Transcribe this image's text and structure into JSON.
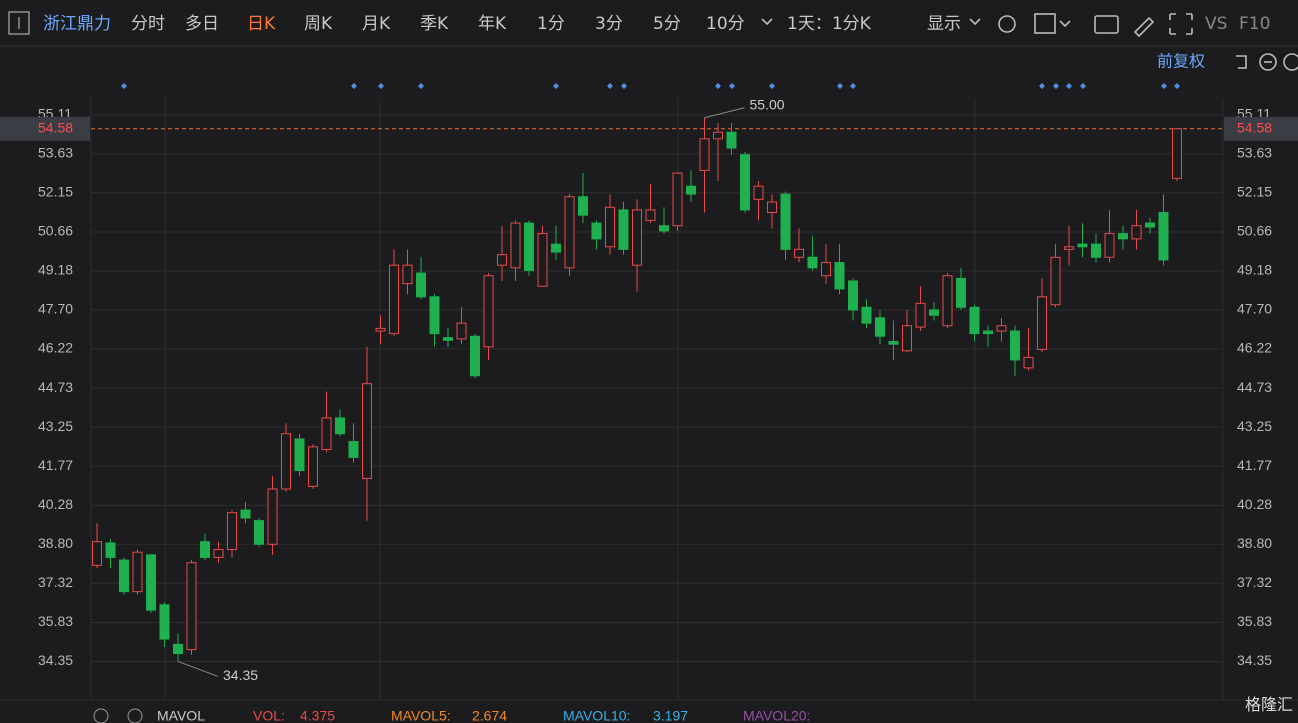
{
  "toolbar": {
    "stock": "浙江鼎力",
    "tabs": [
      "分时",
      "多日",
      "日K",
      "周K",
      "月K",
      "季K",
      "年K",
      "1分",
      "3分",
      "5分",
      "10分"
    ],
    "active_tab": 2,
    "period": "1天：1分K",
    "display": "显示",
    "vs": "VS",
    "f10": "F10"
  },
  "adjust": "前复权",
  "chart_data": {
    "type": "candlestick",
    "open": [
      38.0,
      38.85,
      38.2,
      37.0,
      38.4,
      36.5,
      35.0,
      34.8,
      38.9,
      38.3,
      38.6,
      40.1,
      39.7,
      38.8,
      40.9,
      42.8,
      41.0,
      42.4,
      43.6,
      42.7,
      41.3,
      46.9,
      46.8,
      48.7,
      49.1,
      48.2,
      46.65,
      46.6,
      46.7,
      46.3,
      49.4,
      49.3,
      51.0,
      48.6,
      50.2,
      49.3,
      52.0,
      51.0,
      50.1,
      51.5,
      49.4,
      51.1,
      50.9,
      50.9,
      52.4,
      53.0,
      54.2,
      54.45,
      53.6,
      51.9,
      51.4,
      52.1,
      49.7,
      49.7,
      49.0,
      49.5,
      48.8,
      47.8,
      47.4,
      46.5,
      46.15,
      47.05,
      47.7,
      47.1,
      48.9,
      47.8,
      46.9,
      46.9,
      46.9,
      45.5,
      46.2,
      47.9,
      50.0,
      50.2,
      50.2,
      49.7,
      50.6,
      50.4,
      51.0,
      51.4,
      52.7
    ],
    "high": [
      39.6,
      39.0,
      38.3,
      38.6,
      38.4,
      36.6,
      35.4,
      38.2,
      39.2,
      38.9,
      40.1,
      40.4,
      39.8,
      41.4,
      43.4,
      43.0,
      42.6,
      44.6,
      43.9,
      43.4,
      46.3,
      47.5,
      50.0,
      50.0,
      49.7,
      48.3,
      47.0,
      47.8,
      46.8,
      49.1,
      50.9,
      51.1,
      51.1,
      50.9,
      50.9,
      52.1,
      52.9,
      51.1,
      52.1,
      51.8,
      51.9,
      52.5,
      51.6,
      52.9,
      53.0,
      55.0,
      54.8,
      54.8,
      53.7,
      52.6,
      52.1,
      52.2,
      50.8,
      50.5,
      50.2,
      50.2,
      48.9,
      48.1,
      47.7,
      47.3,
      47.7,
      48.6,
      48.0,
      49.1,
      49.3,
      47.9,
      47.1,
      47.4,
      47.1,
      47.0,
      48.9,
      50.2,
      50.9,
      51.0,
      50.6,
      51.5,
      50.9,
      51.5,
      51.2,
      52.1,
      54.58
    ],
    "low": [
      37.9,
      37.9,
      36.9,
      36.9,
      36.2,
      34.9,
      34.35,
      34.6,
      38.2,
      38.1,
      38.3,
      39.6,
      38.7,
      38.4,
      40.8,
      41.4,
      40.9,
      42.3,
      42.9,
      41.9,
      39.7,
      46.4,
      46.7,
      48.3,
      48.1,
      46.3,
      46.3,
      46.4,
      45.1,
      45.8,
      48.8,
      48.8,
      49.0,
      48.6,
      49.6,
      49.0,
      51.0,
      50.0,
      49.8,
      49.8,
      48.4,
      51.0,
      50.6,
      50.7,
      51.8,
      51.4,
      52.6,
      53.6,
      51.4,
      51.1,
      50.8,
      49.6,
      49.5,
      49.2,
      48.7,
      48.3,
      47.3,
      47.0,
      46.4,
      45.8,
      46.1,
      46.9,
      47.3,
      47.0,
      47.7,
      46.5,
      46.3,
      46.5,
      45.2,
      45.4,
      46.1,
      47.8,
      49.4,
      49.7,
      49.5,
      49.5,
      50.0,
      50.0,
      50.6,
      49.4,
      52.6
    ],
    "close": [
      38.9,
      38.3,
      37.0,
      38.5,
      36.3,
      35.2,
      34.65,
      38.1,
      38.3,
      38.6,
      40.0,
      39.8,
      38.8,
      40.9,
      43.0,
      41.6,
      42.5,
      43.6,
      43.0,
      42.1,
      44.9,
      47.0,
      49.4,
      49.4,
      48.2,
      46.8,
      46.55,
      47.2,
      45.2,
      49.0,
      49.8,
      51.0,
      49.2,
      50.6,
      49.9,
      52.0,
      51.3,
      50.4,
      51.6,
      50.0,
      51.5,
      51.5,
      50.7,
      52.9,
      52.1,
      54.2,
      54.45,
      53.85,
      51.5,
      52.4,
      51.8,
      50.0,
      50.0,
      49.3,
      49.5,
      48.5,
      47.7,
      47.2,
      46.7,
      46.4,
      47.1,
      47.95,
      47.5,
      49.0,
      47.8,
      46.8,
      46.8,
      47.1,
      45.8,
      45.9,
      48.2,
      49.7,
      50.1,
      50.1,
      49.7,
      50.6,
      50.4,
      50.9,
      50.85,
      49.6,
      54.58
    ],
    "up_color": "#e84b4b",
    "down_color": "#1fb14f",
    "ylim": [
      33.0,
      55.75
    ],
    "yticks": [
      34.35,
      35.83,
      37.32,
      {
        "value": 38.8,
        "label": "38.80"
      },
      40.28,
      41.77,
      43.25,
      44.73,
      46.22,
      {
        "value": 47.7,
        "label": "47.70"
      },
      49.18,
      50.66,
      52.15,
      53.63,
      55.11
    ],
    "grid": true,
    "last_price": 54.58,
    "max_label": "55.00",
    "min_label": "34.35"
  },
  "indicator": {
    "name": "MAVOL",
    "vol_label": "VOL:",
    "vol": "4.375",
    "ma5_label": "MAVOL5:",
    "ma5": "2.674",
    "ma10_label": "MAVOL10:",
    "ma10": "3.197",
    "ma20_label": "MAVOL20:"
  },
  "watermark": "格隆汇"
}
